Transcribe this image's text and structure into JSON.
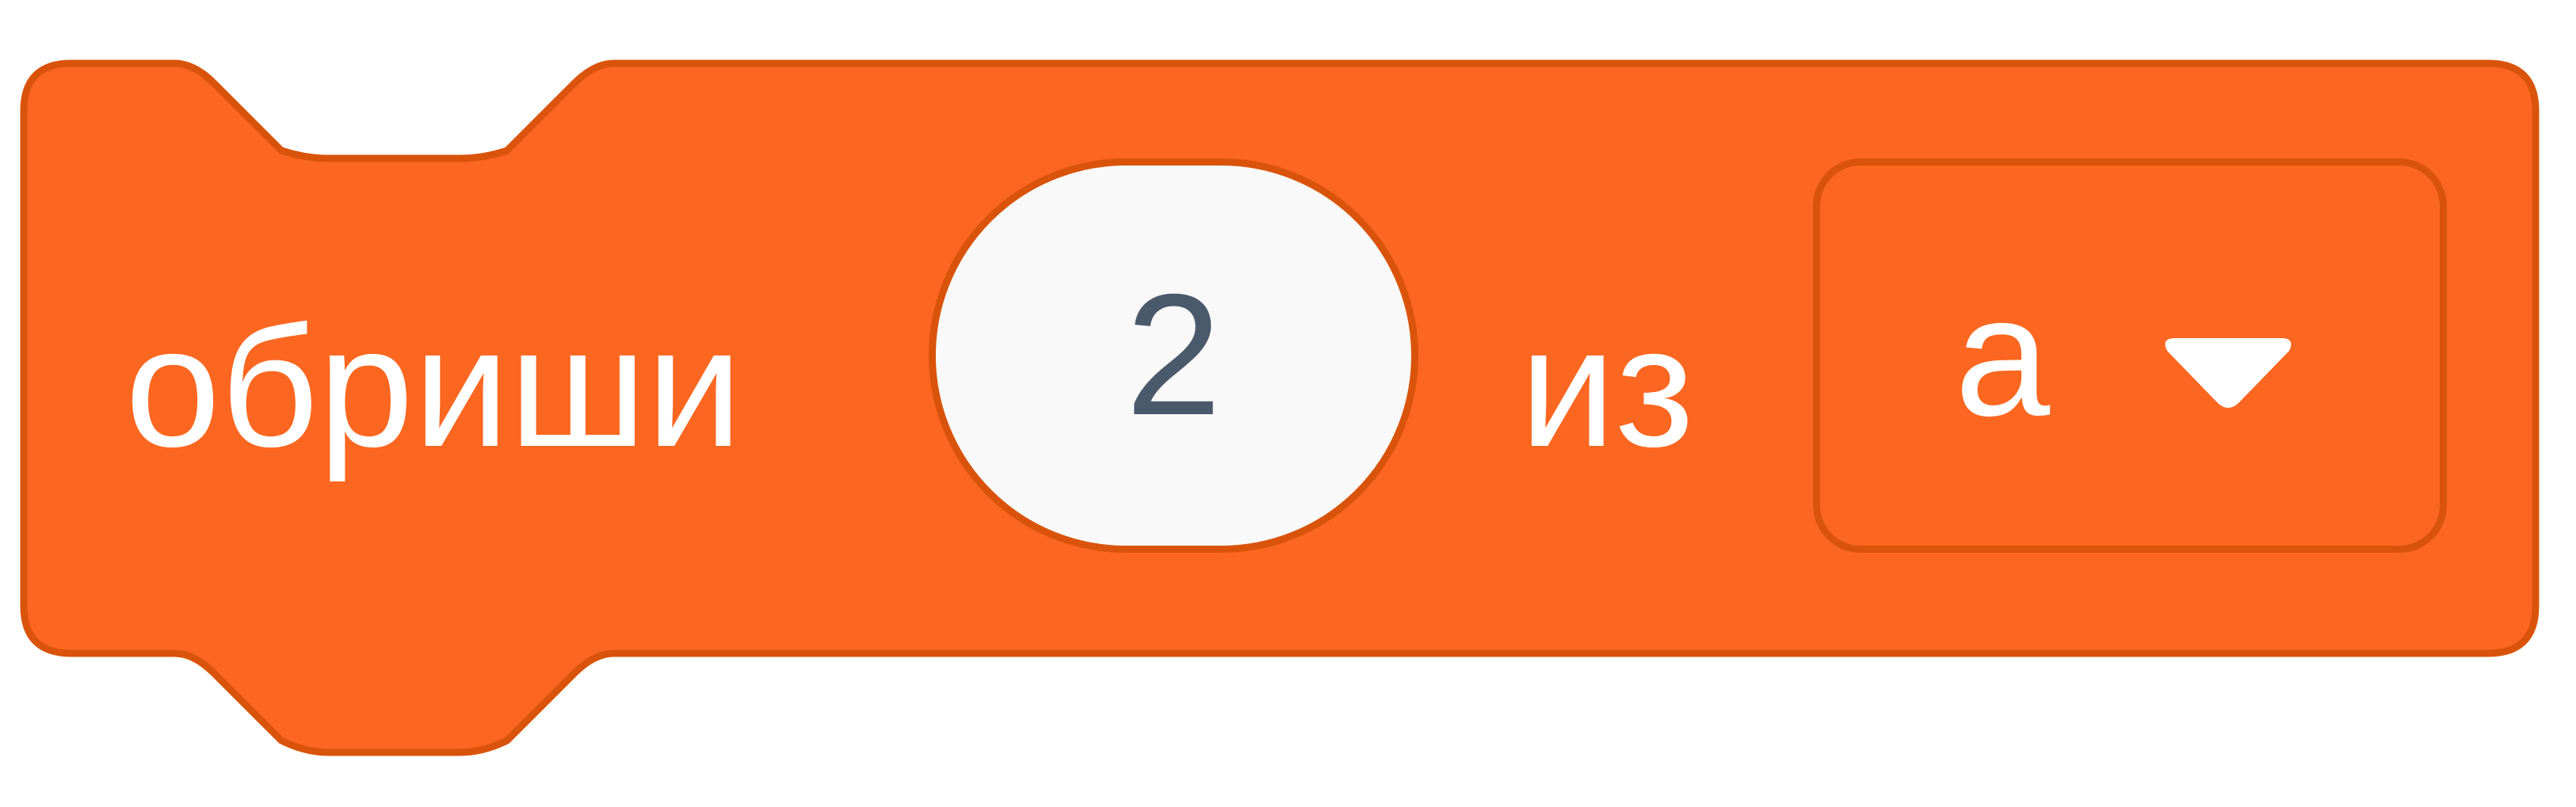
{
  "block": {
    "label_erase": "обриши",
    "number_value": "2",
    "label_from": "из",
    "list_value": "а",
    "caret_icon": "dropdown-caret-icon"
  },
  "colors": {
    "block_fill": "#fb6720",
    "block_stroke": "#d9540a",
    "input_fill": "#f9f9f9",
    "input_text": "#4b5a6b",
    "label_text": "#ffffff"
  }
}
